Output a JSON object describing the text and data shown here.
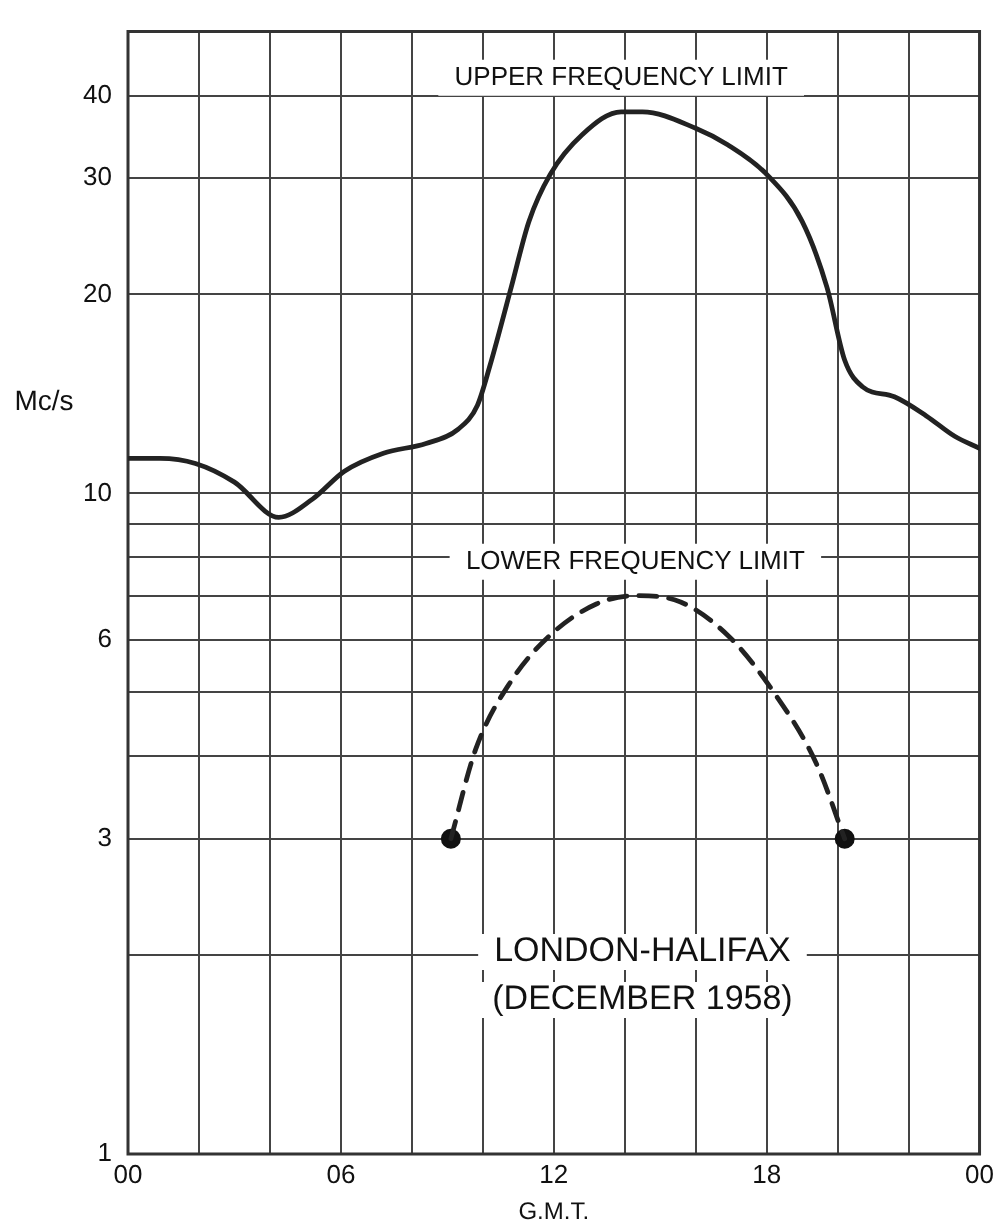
{
  "chart_data": {
    "type": "line",
    "xlabel": "G.M.T.",
    "ylabel": "Mc/s",
    "log": "y",
    "grid": true,
    "legend": false,
    "xlim": [
      0,
      24
    ],
    "ylim": [
      1,
      50
    ],
    "xticks": [
      {
        "value": 0,
        "label": "00"
      },
      {
        "value": 2,
        "label": null
      },
      {
        "value": 4,
        "label": null
      },
      {
        "value": 6,
        "label": "06"
      },
      {
        "value": 8,
        "label": null
      },
      {
        "value": 10,
        "label": null
      },
      {
        "value": 12,
        "label": "12"
      },
      {
        "value": 14,
        "label": null
      },
      {
        "value": 16,
        "label": null
      },
      {
        "value": 18,
        "label": "18"
      },
      {
        "value": 20,
        "label": null
      },
      {
        "value": 22,
        "label": null
      },
      {
        "value": 24,
        "label": "00"
      }
    ],
    "yticks": [
      1,
      {
        "value": 2,
        "label": null
      },
      3,
      {
        "value": 4,
        "label": null
      },
      {
        "value": 5,
        "label": null
      },
      6,
      {
        "value": 7,
        "label": null
      },
      {
        "value": 8,
        "label": null
      },
      {
        "value": 9,
        "label": null
      },
      10,
      20,
      30,
      40
    ],
    "annotations": [
      "LONDON-HALIFAX",
      "(DECEMBER 1958)"
    ],
    "series": [
      {
        "name": "UPPER FREQUENCY LIMIT",
        "color": "#222222",
        "line_style": "solid",
        "marker": "none",
        "x": [
          0,
          0.9,
          1.9,
          3,
          4.25,
          5.2,
          6.1,
          7.2,
          8.4,
          9.3,
          9.85,
          10.2,
          10.8,
          11.3,
          11.9,
          12.8,
          13.9,
          14.5,
          16,
          16.9,
          18,
          19,
          19.7,
          20.2,
          20.7,
          21.6,
          22.5,
          23.3,
          24
        ],
        "values": [
          11.3,
          11.3,
          11.1,
          10.4,
          9.2,
          9.8,
          10.8,
          11.5,
          11.9,
          12.5,
          13.6,
          15.6,
          20.5,
          25.8,
          30.4,
          34.9,
          37.8,
          37.8,
          35.7,
          33.7,
          30.4,
          25.8,
          20.5,
          15.9,
          14.5,
          14,
          13.1,
          12.2,
          11.7
        ]
      },
      {
        "name": "LOWER FREQUENCY LIMIT",
        "color": "#222222",
        "line_style": "dashed",
        "marker": "none",
        "x": [
          9.1,
          9.8,
          10.8,
          11.9,
          13.2,
          14.3,
          15.4,
          16.9,
          18.2,
          19.4,
          20.2
        ],
        "values": [
          3,
          4.1,
          5.2,
          6.1,
          6.8,
          7,
          6.9,
          6.1,
          5,
          3.9,
          3
        ]
      },
      {
        "type": "scatter",
        "color": "#111111",
        "marker": "circle",
        "x": [
          9.1,
          20.2
        ],
        "values": [
          3,
          3
        ]
      }
    ]
  }
}
